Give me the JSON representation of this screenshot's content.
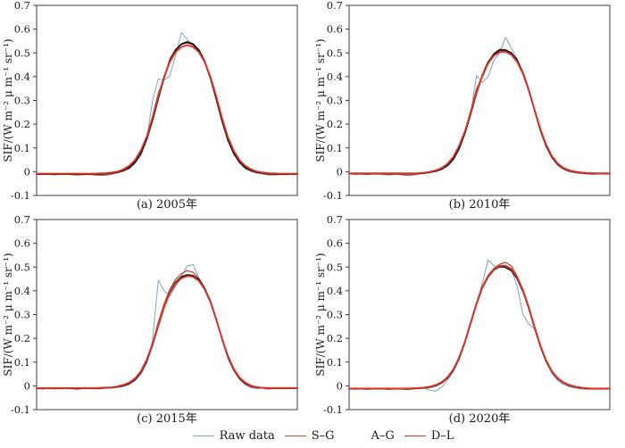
{
  "figure": {
    "description": "Four-panel seasonal SIF curves with raw data and three smoothing fits",
    "background": "#ffffff",
    "frame_color": "#3d3d3d"
  },
  "chart_data": {
    "type": "line",
    "layout": "2x2 grid of panels, shared y-axis style, legend at bottom center",
    "ylabel": "SIF/(W m⁻² μ m⁻¹ sr⁻¹)",
    "ylim": [
      -0.1,
      0.7
    ],
    "ytick_values": [
      0.7,
      0.6,
      0.5,
      0.4,
      0.3,
      0.2,
      0.1,
      0,
      -0.1
    ],
    "ytick_labels": [
      "0.7",
      "0.6",
      "0.5",
      "0.4",
      "0.3",
      "0.2",
      "0.1",
      "0",
      "-0.1"
    ],
    "x_axis_note": "46 equal time steps across one year; no x tick labels shown",
    "grid": "off",
    "legend": {
      "position": "bottom-center",
      "items": [
        {
          "label": "Raw data",
          "color": "#82a1c8",
          "sample_visible": true
        },
        {
          "label": "S–G",
          "color": "#a8583c",
          "sample_visible": true
        },
        {
          "label": "A–G",
          "color": "#141414",
          "sample_visible": false
        },
        {
          "label": "D–L",
          "color": "#e33527",
          "sample_visible": true
        }
      ]
    },
    "panels": [
      {
        "caption": "(a) 2005年",
        "series": [
          {
            "name": "Raw data",
            "color": "#82a1c8",
            "values": [
              -0.008,
              -0.013,
              -0.009,
              -0.014,
              -0.01,
              -0.008,
              -0.013,
              -0.015,
              -0.012,
              -0.01,
              -0.014,
              -0.016,
              -0.013,
              -0.009,
              -0.003,
              0.002,
              0.012,
              0.035,
              0.068,
              0.135,
              0.3,
              0.39,
              0.386,
              0.402,
              0.49,
              0.585,
              0.556,
              0.532,
              0.505,
              0.458,
              0.388,
              0.298,
              0.208,
              0.13,
              0.075,
              0.038,
              0.012,
              0.0,
              -0.006,
              -0.01,
              -0.015,
              -0.012,
              -0.01,
              -0.013,
              -0.009,
              -0.011
            ]
          },
          {
            "name": "S–G",
            "color": "#a8583c",
            "values": [
              -0.01,
              -0.011,
              -0.01,
              -0.012,
              -0.011,
              -0.01,
              -0.012,
              -0.013,
              -0.012,
              -0.011,
              -0.013,
              -0.015,
              -0.014,
              -0.01,
              -0.004,
              0.003,
              0.015,
              0.038,
              0.075,
              0.135,
              0.23,
              0.33,
              0.395,
              0.475,
              0.515,
              0.535,
              0.542,
              0.533,
              0.508,
              0.462,
              0.393,
              0.305,
              0.213,
              0.134,
              0.077,
              0.04,
              0.016,
              0.004,
              -0.004,
              -0.008,
              -0.012,
              -0.013,
              -0.012,
              -0.011,
              -0.01,
              -0.01
            ]
          },
          {
            "name": "A–G",
            "color": "#141414",
            "values": [
              -0.01,
              -0.01,
              -0.01,
              -0.01,
              -0.01,
              -0.01,
              -0.01,
              -0.01,
              -0.01,
              -0.01,
              -0.009,
              -0.009,
              -0.008,
              -0.005,
              -0.002,
              0.006,
              0.018,
              0.041,
              0.079,
              0.137,
              0.217,
              0.309,
              0.396,
              0.465,
              0.512,
              0.537,
              0.546,
              0.537,
              0.512,
              0.465,
              0.396,
              0.309,
              0.217,
              0.137,
              0.079,
              0.041,
              0.018,
              0.006,
              -0.002,
              -0.005,
              -0.008,
              -0.009,
              -0.01,
              -0.01,
              -0.01,
              -0.01
            ]
          },
          {
            "name": "D–L",
            "color": "#e33527",
            "values": [
              -0.008,
              -0.008,
              -0.008,
              -0.008,
              -0.008,
              -0.008,
              -0.008,
              -0.008,
              -0.008,
              -0.008,
              -0.008,
              -0.007,
              -0.006,
              -0.003,
              0.001,
              0.01,
              0.025,
              0.05,
              0.09,
              0.148,
              0.228,
              0.318,
              0.4,
              0.462,
              0.503,
              0.525,
              0.532,
              0.525,
              0.503,
              0.462,
              0.4,
              0.318,
              0.228,
              0.148,
              0.09,
              0.05,
              0.025,
              0.01,
              0.001,
              -0.003,
              -0.006,
              -0.007,
              -0.008,
              -0.008,
              -0.008,
              -0.008
            ]
          }
        ]
      },
      {
        "caption": "(b) 2010年",
        "series": [
          {
            "name": "Raw data",
            "color": "#82a1c8",
            "values": [
              -0.007,
              -0.012,
              -0.008,
              -0.013,
              -0.009,
              -0.008,
              -0.012,
              -0.014,
              -0.01,
              -0.013,
              -0.017,
              -0.012,
              -0.009,
              -0.006,
              -0.002,
              0.001,
              0.008,
              0.022,
              0.048,
              0.092,
              0.16,
              0.25,
              0.405,
              0.375,
              0.4,
              0.47,
              0.5,
              0.565,
              0.52,
              0.475,
              0.415,
              0.348,
              0.255,
              0.172,
              0.105,
              0.058,
              0.026,
              0.01,
              0.0,
              -0.005,
              -0.008,
              -0.01,
              -0.012,
              -0.009,
              -0.007,
              -0.009
            ]
          },
          {
            "name": "S–G",
            "color": "#a8583c",
            "values": [
              -0.009,
              -0.01,
              -0.009,
              -0.011,
              -0.01,
              -0.009,
              -0.011,
              -0.012,
              -0.01,
              -0.012,
              -0.015,
              -0.013,
              -0.01,
              -0.007,
              -0.003,
              0.002,
              0.011,
              0.026,
              0.052,
              0.098,
              0.17,
              0.258,
              0.35,
              0.398,
              0.452,
              0.498,
              0.516,
              0.513,
              0.501,
              0.468,
              0.413,
              0.342,
              0.258,
              0.175,
              0.108,
              0.06,
              0.03,
              0.012,
              0.002,
              -0.003,
              -0.006,
              -0.008,
              -0.009,
              -0.009,
              -0.008,
              -0.008
            ]
          },
          {
            "name": "A–G",
            "color": "#141414",
            "values": [
              -0.008,
              -0.008,
              -0.008,
              -0.008,
              -0.008,
              -0.008,
              -0.008,
              -0.008,
              -0.008,
              -0.008,
              -0.008,
              -0.008,
              -0.007,
              -0.005,
              -0.002,
              0.003,
              0.012,
              0.028,
              0.055,
              0.1,
              0.164,
              0.246,
              0.332,
              0.406,
              0.461,
              0.494,
              0.511,
              0.511,
              0.499,
              0.469,
              0.416,
              0.345,
              0.261,
              0.178,
              0.11,
              0.062,
              0.032,
              0.014,
              0.004,
              -0.001,
              -0.004,
              -0.006,
              -0.007,
              -0.008,
              -0.008,
              -0.008
            ]
          },
          {
            "name": "D–L",
            "color": "#e33527",
            "values": [
              -0.007,
              -0.007,
              -0.007,
              -0.007,
              -0.007,
              -0.007,
              -0.007,
              -0.007,
              -0.007,
              -0.007,
              -0.007,
              -0.007,
              -0.006,
              -0.004,
              0.0,
              0.006,
              0.016,
              0.034,
              0.063,
              0.11,
              0.172,
              0.252,
              0.336,
              0.405,
              0.456,
              0.488,
              0.503,
              0.504,
              0.492,
              0.462,
              0.412,
              0.342,
              0.262,
              0.182,
              0.115,
              0.066,
              0.035,
              0.016,
              0.006,
              0.0,
              -0.003,
              -0.005,
              -0.007,
              -0.007,
              -0.007,
              -0.007
            ]
          }
        ]
      },
      {
        "caption": "(c) 2015年",
        "series": [
          {
            "name": "Raw data",
            "color": "#82a1c8",
            "values": [
              -0.009,
              -0.014,
              -0.01,
              -0.013,
              -0.011,
              -0.009,
              -0.013,
              -0.015,
              -0.011,
              -0.009,
              -0.013,
              -0.012,
              -0.008,
              -0.009,
              -0.006,
              -0.002,
              0.005,
              0.02,
              0.05,
              0.095,
              0.19,
              0.445,
              0.4,
              0.378,
              0.42,
              0.46,
              0.505,
              0.51,
              0.455,
              0.405,
              0.352,
              0.278,
              0.192,
              0.118,
              0.065,
              0.028,
              0.005,
              -0.008,
              -0.012,
              -0.009,
              -0.014,
              -0.01,
              -0.012,
              -0.011,
              -0.009,
              -0.011
            ]
          },
          {
            "name": "S–G",
            "color": "#a8583c",
            "values": [
              -0.011,
              -0.012,
              -0.01,
              -0.012,
              -0.011,
              -0.01,
              -0.012,
              -0.013,
              -0.011,
              -0.01,
              -0.012,
              -0.011,
              -0.009,
              -0.008,
              -0.005,
              0.0,
              0.009,
              0.026,
              0.055,
              0.102,
              0.178,
              0.268,
              0.345,
              0.405,
              0.448,
              0.472,
              0.485,
              0.478,
              0.452,
              0.412,
              0.356,
              0.282,
              0.198,
              0.122,
              0.068,
              0.03,
              0.009,
              -0.003,
              -0.008,
              -0.01,
              -0.012,
              -0.011,
              -0.01,
              -0.011,
              -0.01,
              -0.01
            ]
          },
          {
            "name": "A–G",
            "color": "#141414",
            "values": [
              -0.01,
              -0.01,
              -0.01,
              -0.01,
              -0.01,
              -0.01,
              -0.01,
              -0.01,
              -0.01,
              -0.01,
              -0.01,
              -0.009,
              -0.008,
              -0.007,
              -0.004,
              0.001,
              0.011,
              0.028,
              0.058,
              0.105,
              0.173,
              0.253,
              0.331,
              0.393,
              0.435,
              0.459,
              0.467,
              0.464,
              0.447,
              0.41,
              0.355,
              0.28,
              0.2,
              0.125,
              0.07,
              0.033,
              0.011,
              -0.001,
              -0.006,
              -0.008,
              -0.01,
              -0.01,
              -0.01,
              -0.01,
              -0.01,
              -0.01
            ]
          },
          {
            "name": "D–L",
            "color": "#e33527",
            "values": [
              -0.009,
              -0.009,
              -0.009,
              -0.009,
              -0.009,
              -0.009,
              -0.009,
              -0.009,
              -0.009,
              -0.009,
              -0.009,
              -0.008,
              -0.007,
              -0.006,
              -0.002,
              0.004,
              0.014,
              0.032,
              0.062,
              0.11,
              0.178,
              0.256,
              0.332,
              0.39,
              0.43,
              0.453,
              0.462,
              0.459,
              0.442,
              0.406,
              0.352,
              0.278,
              0.2,
              0.128,
              0.073,
              0.036,
              0.014,
              0.001,
              -0.005,
              -0.008,
              -0.009,
              -0.009,
              -0.009,
              -0.009,
              -0.009,
              -0.009
            ]
          }
        ]
      },
      {
        "caption": "(d) 2020年",
        "series": [
          {
            "name": "Raw data",
            "color": "#82a1c8",
            "values": [
              -0.011,
              -0.015,
              -0.012,
              -0.016,
              -0.013,
              -0.011,
              -0.014,
              -0.016,
              -0.012,
              -0.014,
              -0.016,
              -0.013,
              -0.011,
              -0.01,
              -0.018,
              -0.022,
              -0.005,
              0.025,
              0.06,
              0.11,
              0.18,
              0.262,
              0.345,
              0.435,
              0.53,
              0.505,
              0.5,
              0.502,
              0.49,
              0.42,
              0.3,
              0.26,
              0.24,
              0.165,
              0.1,
              0.052,
              0.022,
              0.006,
              -0.004,
              -0.009,
              -0.013,
              -0.015,
              -0.011,
              -0.013,
              -0.012,
              -0.012
            ]
          },
          {
            "name": "S–G",
            "color": "#a8583c",
            "values": [
              -0.013,
              -0.012,
              -0.013,
              -0.012,
              -0.013,
              -0.012,
              -0.013,
              -0.014,
              -0.012,
              -0.013,
              -0.014,
              -0.012,
              -0.011,
              -0.009,
              -0.006,
              0.0,
              0.012,
              0.032,
              0.065,
              0.115,
              0.188,
              0.27,
              0.352,
              0.42,
              0.465,
              0.495,
              0.512,
              0.52,
              0.505,
              0.462,
              0.402,
              0.33,
              0.246,
              0.166,
              0.103,
              0.058,
              0.029,
              0.011,
              0.0,
              -0.006,
              -0.01,
              -0.012,
              -0.013,
              -0.012,
              -0.012,
              -0.012
            ]
          },
          {
            "name": "A–G",
            "color": "#141414",
            "values": [
              -0.012,
              -0.012,
              -0.012,
              -0.012,
              -0.012,
              -0.012,
              -0.012,
              -0.012,
              -0.012,
              -0.012,
              -0.012,
              -0.011,
              -0.01,
              -0.008,
              -0.005,
              0.002,
              0.014,
              0.035,
              0.068,
              0.118,
              0.186,
              0.266,
              0.346,
              0.413,
              0.46,
              0.489,
              0.502,
              0.5,
              0.485,
              0.452,
              0.399,
              0.328,
              0.247,
              0.169,
              0.106,
              0.061,
              0.032,
              0.014,
              0.003,
              -0.004,
              -0.008,
              -0.01,
              -0.012,
              -0.012,
              -0.012,
              -0.012
            ]
          },
          {
            "name": "D–L",
            "color": "#e33527",
            "values": [
              -0.011,
              -0.011,
              -0.011,
              -0.011,
              -0.011,
              -0.011,
              -0.011,
              -0.011,
              -0.011,
              -0.011,
              -0.011,
              -0.01,
              -0.009,
              -0.007,
              -0.003,
              0.004,
              0.016,
              0.037,
              0.07,
              0.12,
              0.188,
              0.268,
              0.348,
              0.415,
              0.463,
              0.492,
              0.505,
              0.506,
              0.492,
              0.458,
              0.404,
              0.332,
              0.25,
              0.172,
              0.108,
              0.062,
              0.033,
              0.015,
              0.004,
              -0.003,
              -0.007,
              -0.01,
              -0.011,
              -0.011,
              -0.011,
              -0.011
            ]
          }
        ]
      }
    ]
  }
}
